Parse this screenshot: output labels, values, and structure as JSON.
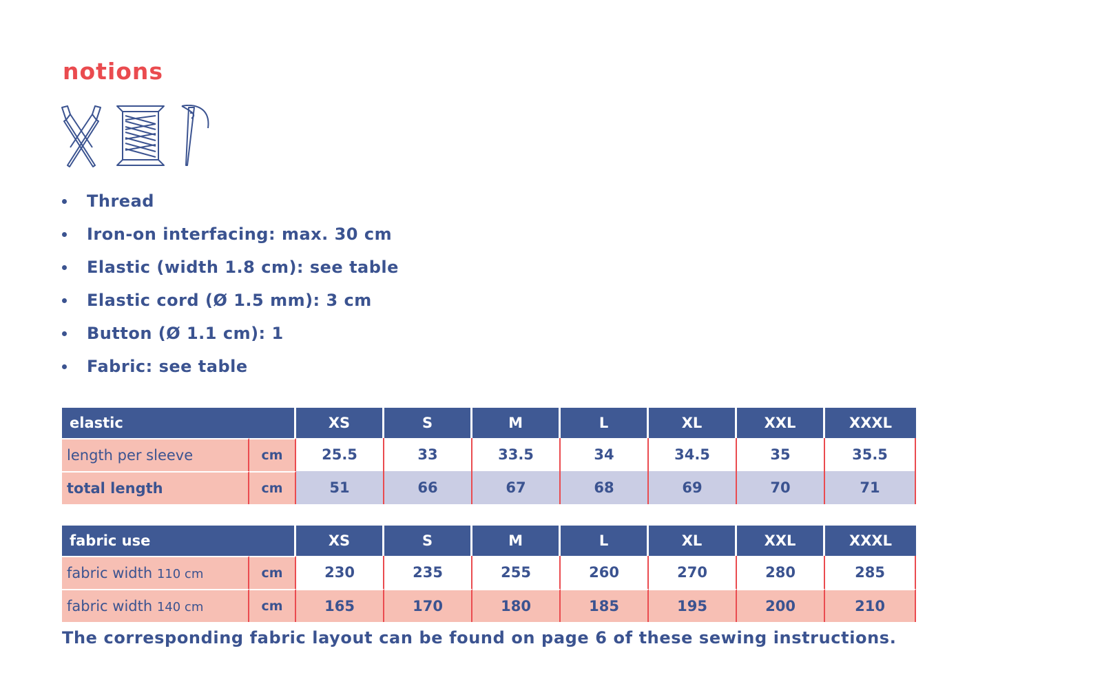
{
  "title": "notions",
  "icons": [
    "scissors-icon",
    "thread-spool-icon",
    "needle-icon"
  ],
  "bullets": [
    "Thread",
    "Iron-on interfacing: max. 30 cm",
    "Elastic (width 1.8 cm): see table",
    "Elastic cord (Ø 1.5 mm): 3 cm",
    "Button (Ø 1.1 cm): 1",
    "Fabric: see table"
  ],
  "sizes": [
    "XS",
    "S",
    "M",
    "L",
    "XL",
    "XXL",
    "XXXL"
  ],
  "elastic_table": {
    "header": "elastic",
    "rows": [
      {
        "label": "length per sleeve",
        "unit": "cm",
        "values": [
          "25.5",
          "33",
          "33.5",
          "34",
          "34.5",
          "35",
          "35.5"
        ]
      },
      {
        "label": "total length",
        "unit": "cm",
        "values": [
          "51",
          "66",
          "67",
          "68",
          "69",
          "70",
          "71"
        ]
      }
    ]
  },
  "fabric_table": {
    "header": "fabric use",
    "rows": [
      {
        "label": "fabric width ",
        "label_small": "110 cm",
        "unit": "cm",
        "values": [
          "230",
          "235",
          "255",
          "260",
          "270",
          "280",
          "285"
        ]
      },
      {
        "label": "fabric width ",
        "label_small": "140 cm",
        "unit": "cm",
        "values": [
          "165",
          "170",
          "180",
          "185",
          "195",
          "200",
          "210"
        ]
      }
    ]
  },
  "footnote": "The corresponding fabric layout can be found on page 6 of these sewing instructions.",
  "colors": {
    "accent_red": "#ea4b4f",
    "navy": "#3b5390",
    "header_bg": "#3f5994",
    "pink": "#f7bfb4",
    "lavender": "#cacde4"
  }
}
